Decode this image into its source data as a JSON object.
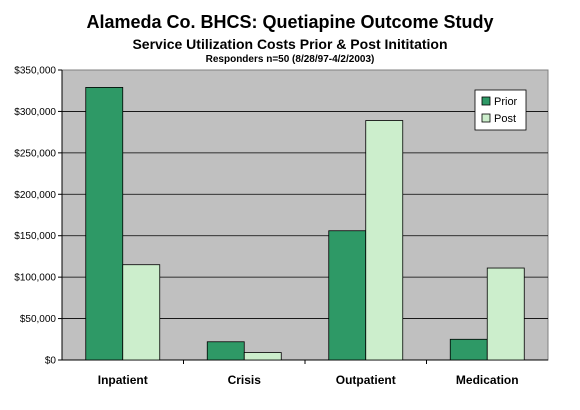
{
  "chart_data": {
    "type": "bar",
    "title": "Alameda Co. BHCS: Quetiapine Outcome Study",
    "subtitle": "Service Utilization Costs Prior & Post Inititation",
    "subtitle2": "Responders n=50 (8/28/97-4/2/2003)",
    "categories": [
      "Inpatient",
      "Crisis",
      "Outpatient",
      "Medication"
    ],
    "series": [
      {
        "name": "Prior",
        "values": [
          329000,
          22000,
          156000,
          25000
        ],
        "color": "#2e9966"
      },
      {
        "name": "Post",
        "values": [
          115000,
          9000,
          289000,
          111000
        ],
        "color": "#cceecc"
      }
    ],
    "yticks": [
      "$0",
      "$50,000",
      "$100,000",
      "$150,000",
      "$200,000",
      "$250,000",
      "$300,000",
      "$350,000"
    ],
    "ylim": [
      0,
      350000
    ],
    "legend_position": "top-right",
    "grid": true,
    "plot_background": "#c0c0c0"
  }
}
